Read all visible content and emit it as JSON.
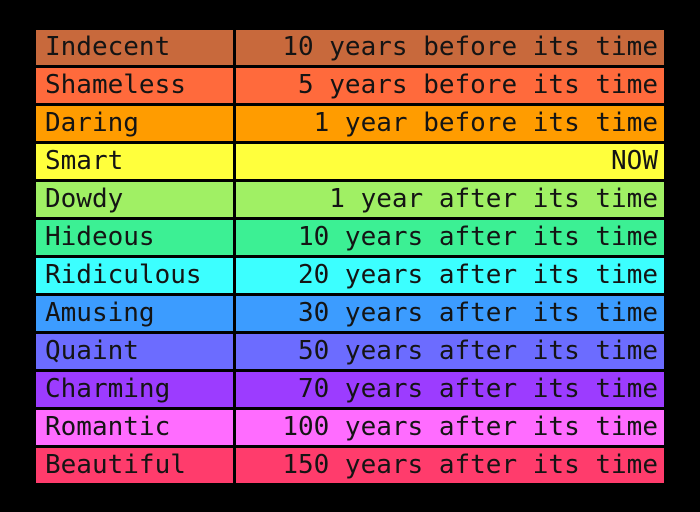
{
  "table": {
    "rows": [
      {
        "label": "Indecent",
        "time": "10 years before its time",
        "color": "#c8693c"
      },
      {
        "label": "Shameless",
        "time": "5 years before its time",
        "color": "#ff6a3c"
      },
      {
        "label": "Daring",
        "time": "1 year before its time",
        "color": "#ff9c00"
      },
      {
        "label": "Smart",
        "time": "NOW",
        "color": "#ffff3c"
      },
      {
        "label": "Dowdy",
        "time": "1 year after its time",
        "color": "#a0f064"
      },
      {
        "label": "Hideous",
        "time": "10 years after its time",
        "color": "#3cf094"
      },
      {
        "label": "Ridiculous",
        "time": "20 years after its time",
        "color": "#3cffff"
      },
      {
        "label": "Amusing",
        "time": "30 years after its time",
        "color": "#3c9cff"
      },
      {
        "label": "Quaint",
        "time": "50 years after its time",
        "color": "#6c6cff"
      },
      {
        "label": "Charming",
        "time": "70 years after its time",
        "color": "#9c3cff"
      },
      {
        "label": "Romantic",
        "time": "100 years after its time",
        "color": "#ff6cff"
      },
      {
        "label": "Beautiful",
        "time": "150 years after its time",
        "color": "#ff3c6c"
      }
    ]
  }
}
